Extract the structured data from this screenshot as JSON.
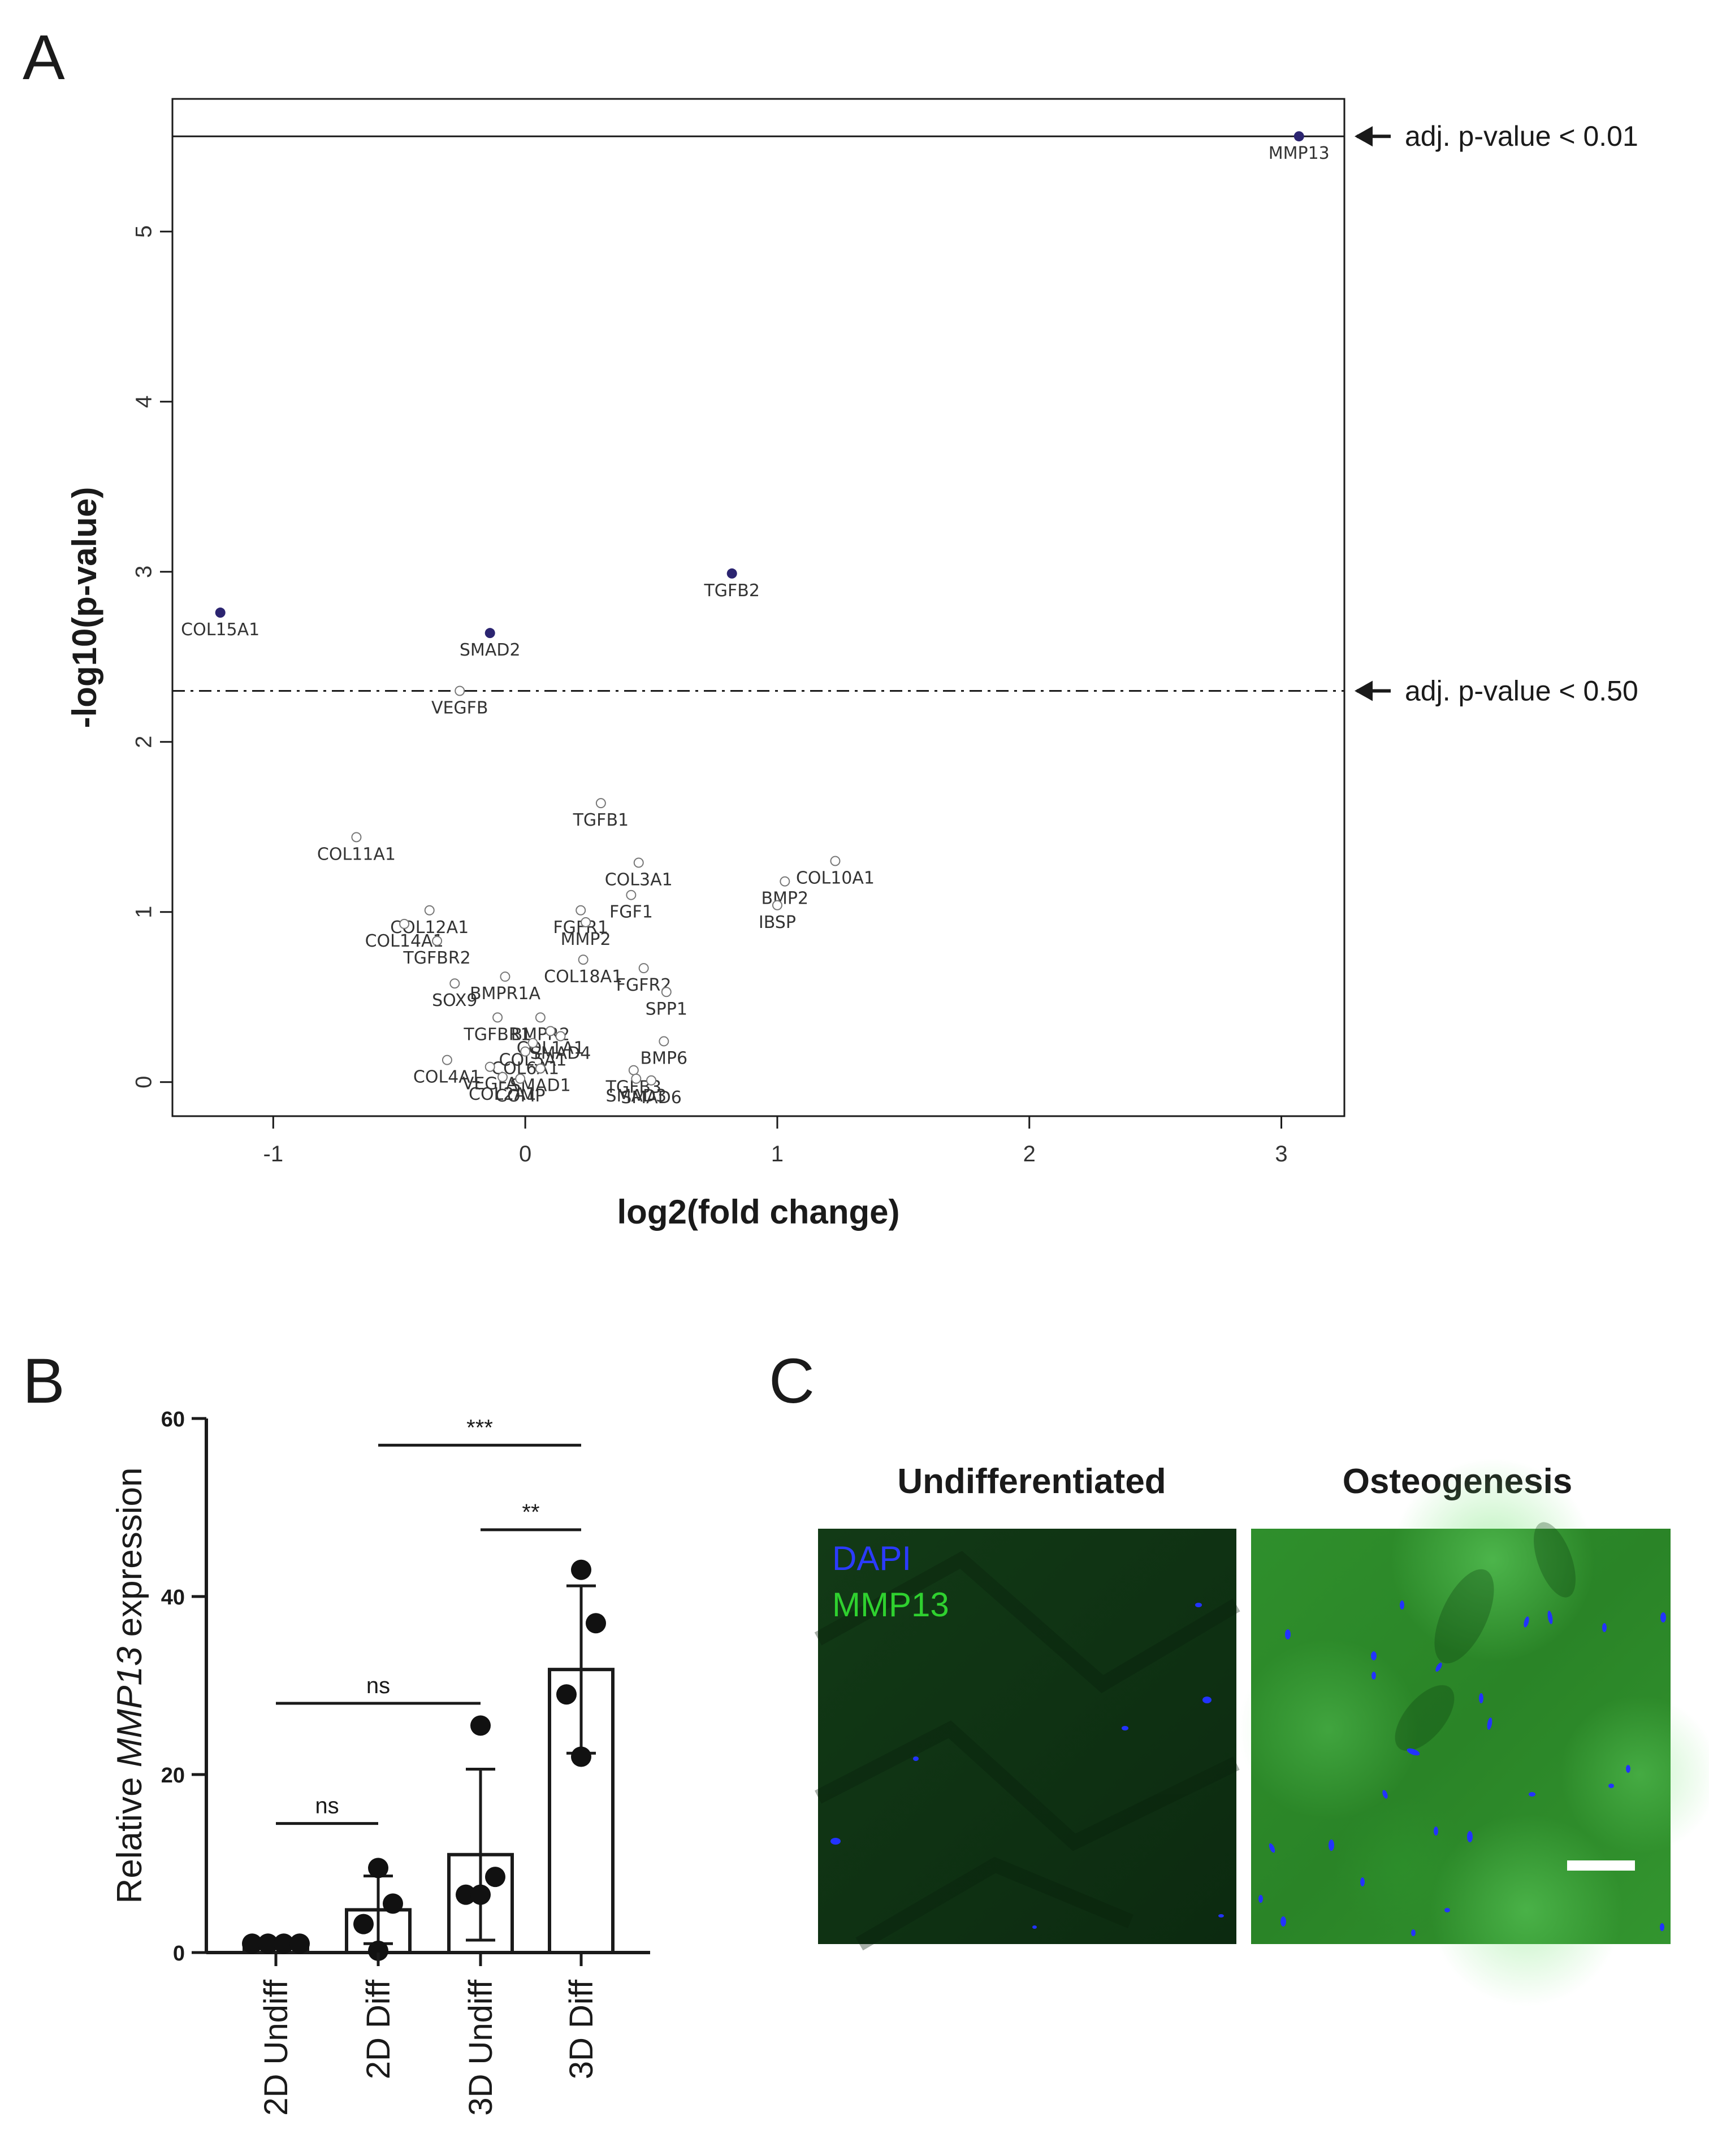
{
  "panels": {
    "a": "A",
    "b": "B",
    "c": "C"
  },
  "colors": {
    "sig_point": "#2b2470",
    "dapi": "#2b3bff",
    "mmp13": "#2fd12f",
    "axis": "#1a1a1a"
  },
  "chart_data": [
    {
      "type": "scatter",
      "panel": "A",
      "xlabel": "log2(fold change)",
      "ylabel": "-log10(p-value)",
      "xlim": [
        -1.4,
        3.25
      ],
      "ylim": [
        -0.2,
        5.78
      ],
      "xticks": [
        -1,
        0,
        1,
        2,
        3
      ],
      "yticks": [
        0,
        1,
        2,
        3,
        4,
        5
      ],
      "thresholds": [
        {
          "y": 5.56,
          "style": "solid",
          "label": "adj. p-value < 0.01"
        },
        {
          "y": 2.3,
          "style": "dashdot",
          "label": "adj. p-value < 0.50"
        }
      ],
      "points": [
        {
          "gene": "MMP13",
          "x": 3.07,
          "y": 5.56,
          "sig": true
        },
        {
          "gene": "TGFB2",
          "x": 0.82,
          "y": 2.99,
          "sig": true
        },
        {
          "gene": "COL15A1",
          "x": -1.21,
          "y": 2.76,
          "sig": true
        },
        {
          "gene": "SMAD2",
          "x": -0.14,
          "y": 2.64,
          "sig": true
        },
        {
          "gene": "VEGFB",
          "x": -0.26,
          "y": 2.3,
          "sig": false
        },
        {
          "gene": "TGFB1",
          "x": 0.3,
          "y": 1.64,
          "sig": false
        },
        {
          "gene": "COL11A1",
          "x": -0.67,
          "y": 1.44,
          "sig": false
        },
        {
          "gene": "COL10A1",
          "x": 1.23,
          "y": 1.3,
          "sig": false
        },
        {
          "gene": "COL3A1",
          "x": 0.45,
          "y": 1.29,
          "sig": false
        },
        {
          "gene": "BMP2",
          "x": 1.03,
          "y": 1.18,
          "sig": false
        },
        {
          "gene": "FGF1",
          "x": 0.42,
          "y": 1.1,
          "sig": false
        },
        {
          "gene": "IBSP",
          "x": 1.0,
          "y": 1.04,
          "sig": false
        },
        {
          "gene": "COL12A1",
          "x": -0.38,
          "y": 1.01,
          "sig": false
        },
        {
          "gene": "FGFR1",
          "x": 0.22,
          "y": 1.01,
          "sig": false
        },
        {
          "gene": "MMP2",
          "x": 0.24,
          "y": 0.94,
          "sig": false
        },
        {
          "gene": "COL14A1",
          "x": -0.48,
          "y": 0.93,
          "sig": false
        },
        {
          "gene": "TGFBR2",
          "x": -0.35,
          "y": 0.83,
          "sig": false
        },
        {
          "gene": "COL18A1",
          "x": 0.23,
          "y": 0.72,
          "sig": false
        },
        {
          "gene": "FGFR2",
          "x": 0.47,
          "y": 0.67,
          "sig": false
        },
        {
          "gene": "BMPR1A",
          "x": -0.08,
          "y": 0.62,
          "sig": false
        },
        {
          "gene": "SOX9",
          "x": -0.28,
          "y": 0.58,
          "sig": false
        },
        {
          "gene": "SPP1",
          "x": 0.56,
          "y": 0.53,
          "sig": false
        },
        {
          "gene": "TGFBR1",
          "x": -0.11,
          "y": 0.38,
          "sig": false
        },
        {
          "gene": "BMPR2",
          "x": 0.06,
          "y": 0.38,
          "sig": false
        },
        {
          "gene": "COL1A1",
          "x": 0.1,
          "y": 0.3,
          "sig": false
        },
        {
          "gene": "SMAD4",
          "x": 0.14,
          "y": 0.27,
          "sig": false
        },
        {
          "gene": "COL5A1",
          "x": 0.03,
          "y": 0.23,
          "sig": false
        },
        {
          "gene": "BMP6",
          "x": 0.55,
          "y": 0.24,
          "sig": false
        },
        {
          "gene": "COL6A1",
          "x": 0.0,
          "y": 0.18,
          "sig": false
        },
        {
          "gene": "COL4A1",
          "x": -0.31,
          "y": 0.13,
          "sig": false
        },
        {
          "gene": "VEGFA",
          "x": -0.14,
          "y": 0.09,
          "sig": false
        },
        {
          "gene": "SMAD1",
          "x": 0.06,
          "y": 0.08,
          "sig": false
        },
        {
          "gene": "TGFB3",
          "x": 0.43,
          "y": 0.07,
          "sig": false
        },
        {
          "gene": "COL2A1",
          "x": -0.09,
          "y": 0.03,
          "sig": false
        },
        {
          "gene": "COMP",
          "x": -0.02,
          "y": 0.02,
          "sig": false
        },
        {
          "gene": "SMAD3",
          "x": 0.44,
          "y": 0.02,
          "sig": false
        },
        {
          "gene": "SMAD6",
          "x": 0.5,
          "y": 0.01,
          "sig": false
        }
      ]
    },
    {
      "type": "bar",
      "panel": "B",
      "ylabel_prefix": "Relative ",
      "ylabel_gene": "MMP13",
      "ylabel_suffix": " expression",
      "ylim": [
        0,
        60
      ],
      "yticks": [
        0,
        20,
        40,
        60
      ],
      "categories": [
        "2D Undiff",
        "2D Diff",
        "3D Undiff",
        "3D Diff"
      ],
      "means": [
        1.0,
        4.8,
        11.0,
        31.8
      ],
      "sd": [
        0.2,
        3.8,
        9.6,
        9.4
      ],
      "replicates": [
        [
          1,
          1,
          1,
          1
        ],
        [
          9.5,
          5.5,
          3.2,
          0.2
        ],
        [
          25.5,
          8.5,
          6.5,
          6.5
        ],
        [
          43,
          37,
          29,
          22
        ]
      ],
      "comparisons": [
        {
          "from": 0,
          "to": 1,
          "label": "ns",
          "y": 14.5
        },
        {
          "from": 0,
          "to": 2,
          "label": "ns",
          "y": 28.0
        },
        {
          "from": 2,
          "to": 3,
          "label": "**",
          "y": 47.5
        },
        {
          "from": 1,
          "to": 3,
          "label": "***",
          "y": 57.0
        }
      ]
    }
  ],
  "panel_c": {
    "titles": [
      "Undifferentiated",
      "Osteogenesis"
    ],
    "legend": [
      "DAPI",
      "MMP13"
    ]
  }
}
